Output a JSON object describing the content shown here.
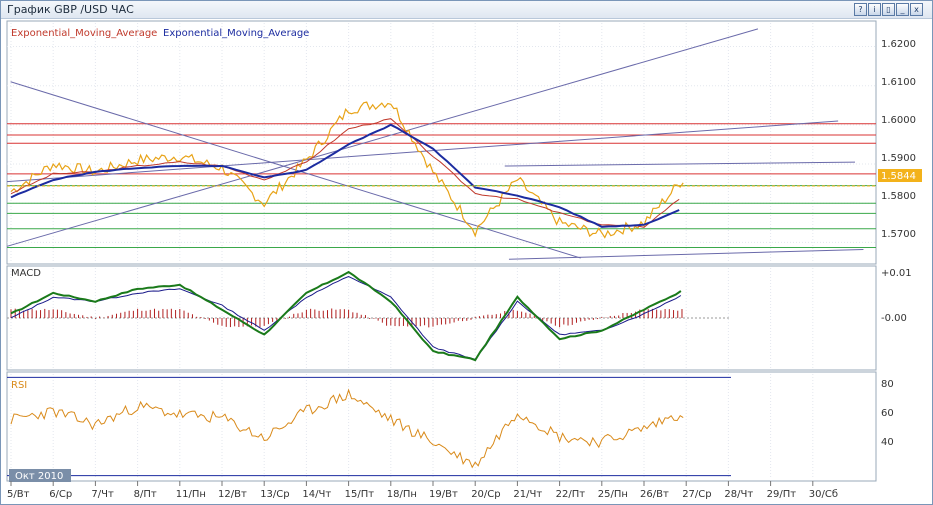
{
  "window": {
    "title": "График GBP /USD  ЧАС",
    "buttons": [
      "?",
      "i",
      "▯",
      "_",
      "x"
    ]
  },
  "colors": {
    "price": "#e8a317",
    "ema_fast": "#c0392b",
    "ema_slow": "#1c2ca0",
    "resistance": "#d93333",
    "support": "#3aa84a",
    "trend": "#6a6aaa",
    "macd_line": "#1a7a1a",
    "signal_line": "#1a1a8a",
    "macd_hist": "#b02020",
    "rsi": "#d98a1a",
    "current_price_bg": "#f3b21a"
  },
  "legend": {
    "ema_fast_label": "Exponential_Moving_Average",
    "ema_slow_label": "Exponential_Moving_Average"
  },
  "price_panel": {
    "y_ticks": [
      "1.6200",
      "1.6100",
      "1.6000",
      "1.5900",
      "1.5800",
      "1.5700"
    ],
    "current_price": "1.5844"
  },
  "macd_panel": {
    "name": "MACD",
    "y_ticks": [
      "+0.01",
      "-0.00"
    ]
  },
  "rsi_panel": {
    "name": "RSI",
    "y_ticks": [
      "80",
      "60",
      "40"
    ]
  },
  "month_badge": "Окт 2010",
  "x_ticks": [
    "5/Вт",
    "6/Ср",
    "7/Чт",
    "8/Пт",
    "11/Пн",
    "12/Вт",
    "13/Ср",
    "14/Чт",
    "15/Пт",
    "18/Пн",
    "19/Вт",
    "20/Ср",
    "21/Чт",
    "22/Пт",
    "25/Пн",
    "26/Вт",
    "27/Ср",
    "28/Чт",
    "29/Пт",
    "30/Сб"
  ],
  "chart_data": {
    "type": "line",
    "x": [
      "5/Вт",
      "6/Ср",
      "7/Чт",
      "8/Пт",
      "11/Пн",
      "12/Вт",
      "13/Ср",
      "14/Чт",
      "15/Пт",
      "18/Пн",
      "19/Вт",
      "20/Ср",
      "21/Чт",
      "22/Пт",
      "25/Пн",
      "26/Вт",
      "27/Ср",
      "28/Чт",
      "29/Пт",
      "30/Сб"
    ],
    "ylim": [
      1.565,
      1.626
    ],
    "series": [
      {
        "name": "Exponential_Moving_Average",
        "values": [
          1.5825,
          1.5875,
          1.588,
          1.5895,
          1.5905,
          1.5895,
          1.586,
          1.5905,
          1.599,
          1.6015,
          1.592,
          1.5825,
          1.581,
          1.5775,
          1.5745,
          1.574,
          1.5825,
          null,
          null,
          null
        ]
      },
      {
        "name": "Exponential_Moving_Average",
        "values": [
          1.5815,
          1.586,
          1.588,
          1.589,
          1.5895,
          1.5895,
          1.5865,
          1.5885,
          1.595,
          1.6,
          1.594,
          1.584,
          1.582,
          1.579,
          1.574,
          1.5745,
          1.579,
          null,
          null,
          null
        ]
      }
    ],
    "price_close": [
      1.583,
      1.59,
      1.588,
      1.591,
      1.592,
      1.589,
      1.58,
      1.591,
      1.604,
      1.606,
      1.588,
      1.573,
      1.586,
      1.575,
      1.572,
      1.575,
      1.587,
      null,
      null,
      null
    ],
    "horizontal_levels": {
      "resistance": [
        1.6003,
        1.5974,
        1.5953,
        1.5875
      ],
      "support": [
        1.5845,
        1.58,
        1.5774,
        1.5735,
        1.5687
      ]
    },
    "current_price": 1.5844,
    "macd": {
      "ylim": [
        -0.012,
        0.012
      ],
      "macd": [
        0.001,
        0.006,
        0.004,
        0.007,
        0.008,
        0.002,
        -0.004,
        0.006,
        0.011,
        0.004,
        -0.008,
        -0.01,
        0.005,
        -0.005,
        -0.003,
        0.002,
        0.007,
        null,
        null,
        null
      ],
      "signal": [
        0.0,
        0.005,
        0.004,
        0.006,
        0.007,
        0.003,
        -0.003,
        0.005,
        0.01,
        0.005,
        -0.007,
        -0.01,
        0.004,
        -0.004,
        -0.003,
        0.001,
        0.006,
        null,
        null,
        null
      ]
    },
    "rsi": {
      "ylim": [
        20,
        82
      ],
      "values": [
        55,
        60,
        52,
        63,
        58,
        56,
        44,
        60,
        70,
        55,
        42,
        28,
        60,
        45,
        42,
        50,
        60,
        null,
        null,
        null
      ]
    }
  }
}
